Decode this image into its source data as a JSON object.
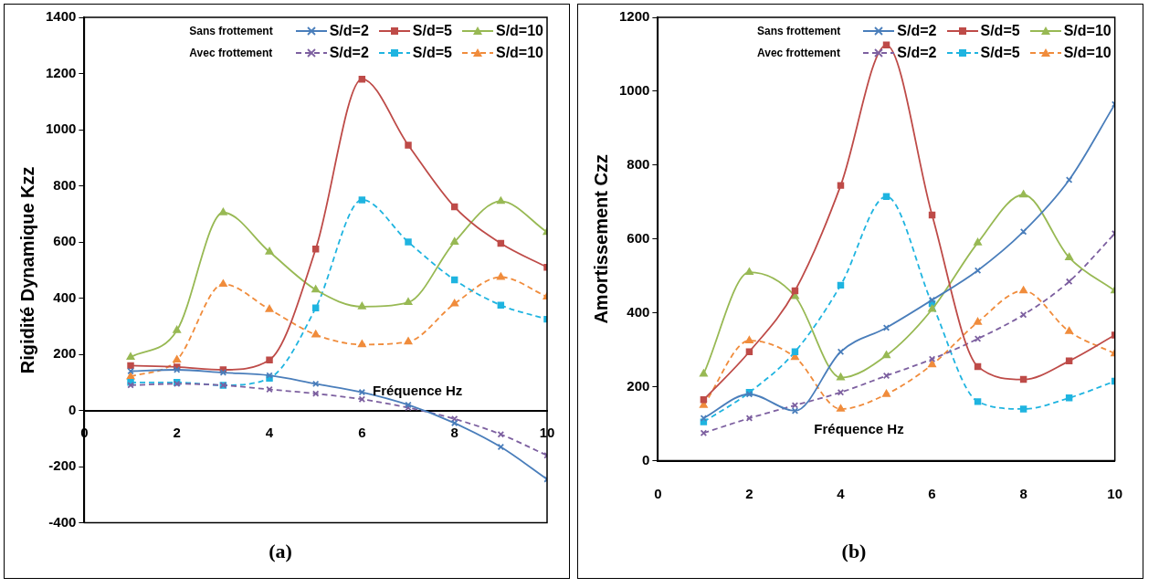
{
  "chart_data": [
    {
      "type": "line",
      "title": "(a)",
      "xlabel": "Fréquence Hz",
      "ylabel": "Rigidité Dynamique Kzz",
      "x": [
        1,
        2,
        3,
        4,
        5,
        6,
        7,
        8,
        9,
        10
      ],
      "xlim": [
        0,
        10
      ],
      "xticks": [
        0,
        2,
        4,
        6,
        8,
        10
      ],
      "ylim": [
        -400,
        1400
      ],
      "yticks": [
        -400,
        -200,
        0,
        200,
        400,
        600,
        800,
        1000,
        1200,
        1400
      ],
      "grid": false,
      "legend": "top right",
      "annotations": [
        "Sans frottement",
        "Avec frottement"
      ],
      "series": [
        {
          "name": "S/d=2",
          "color": "#4a7ebb",
          "marker": "cross",
          "line_style": "solid",
          "values": [
            140,
            145,
            135,
            125,
            95,
            65,
            20,
            -45,
            -130,
            -245
          ]
        },
        {
          "name": "S/d=5",
          "color": "#be4b48",
          "marker": "square",
          "line_style": "solid",
          "values": [
            160,
            155,
            145,
            180,
            575,
            1180,
            945,
            725,
            595,
            510
          ]
        },
        {
          "name": "S/d=10",
          "color": "#98b954",
          "marker": "triangle",
          "line_style": "solid",
          "values": [
            190,
            285,
            705,
            565,
            430,
            370,
            385,
            600,
            745,
            635
          ]
        },
        {
          "name": "S/d=2",
          "color": "#7d60a0",
          "marker": "cross",
          "line_style": "dashed",
          "values": [
            90,
            95,
            90,
            75,
            60,
            40,
            10,
            -30,
            -85,
            -160
          ]
        },
        {
          "name": "S/d=5",
          "color": "#1fb4e0",
          "marker": "square",
          "line_style": "dashed",
          "values": [
            100,
            100,
            90,
            115,
            365,
            750,
            600,
            465,
            375,
            325
          ]
        },
        {
          "name": "S/d=10",
          "color": "#f08c3c",
          "marker": "triangle",
          "line_style": "dashed",
          "values": [
            120,
            180,
            450,
            360,
            270,
            235,
            245,
            380,
            475,
            405
          ]
        }
      ]
    },
    {
      "type": "line",
      "title": "(b)",
      "xlabel": "Fréquence Hz",
      "ylabel": "Amortissement Czz",
      "x": [
        1,
        2,
        3,
        4,
        5,
        6,
        7,
        8,
        9,
        10
      ],
      "xlim": [
        0,
        10
      ],
      "xticks": [
        0,
        2,
        4,
        6,
        8,
        10
      ],
      "ylim": [
        0,
        1200
      ],
      "yticks": [
        0,
        200,
        400,
        600,
        800,
        1000,
        1200
      ],
      "grid": false,
      "legend": "top right",
      "annotations": [
        "Sans frottement",
        "Avec frottement"
      ],
      "series": [
        {
          "name": "S/d=2",
          "color": "#4a7ebb",
          "marker": "cross",
          "line_style": "solid",
          "values": [
            115,
            180,
            135,
            295,
            360,
            435,
            515,
            620,
            760,
            965
          ]
        },
        {
          "name": "S/d=5",
          "color": "#be4b48",
          "marker": "square",
          "line_style": "solid",
          "values": [
            165,
            295,
            460,
            745,
            1125,
            665,
            255,
            220,
            270,
            340
          ]
        },
        {
          "name": "S/d=10",
          "color": "#98b954",
          "marker": "triangle",
          "line_style": "solid",
          "values": [
            235,
            510,
            445,
            225,
            285,
            410,
            590,
            720,
            550,
            460
          ]
        },
        {
          "name": "S/d=2",
          "color": "#7d60a0",
          "marker": "cross",
          "line_style": "dashed",
          "values": [
            75,
            115,
            150,
            185,
            230,
            275,
            330,
            395,
            485,
            615
          ]
        },
        {
          "name": "S/d=5",
          "color": "#1fb4e0",
          "marker": "square",
          "line_style": "dashed",
          "values": [
            105,
            185,
            295,
            475,
            715,
            425,
            160,
            140,
            170,
            215
          ]
        },
        {
          "name": "S/d=10",
          "color": "#f08c3c",
          "marker": "triangle",
          "line_style": "dashed",
          "values": [
            150,
            325,
            280,
            140,
            180,
            260,
            375,
            460,
            350,
            290
          ]
        }
      ]
    }
  ]
}
